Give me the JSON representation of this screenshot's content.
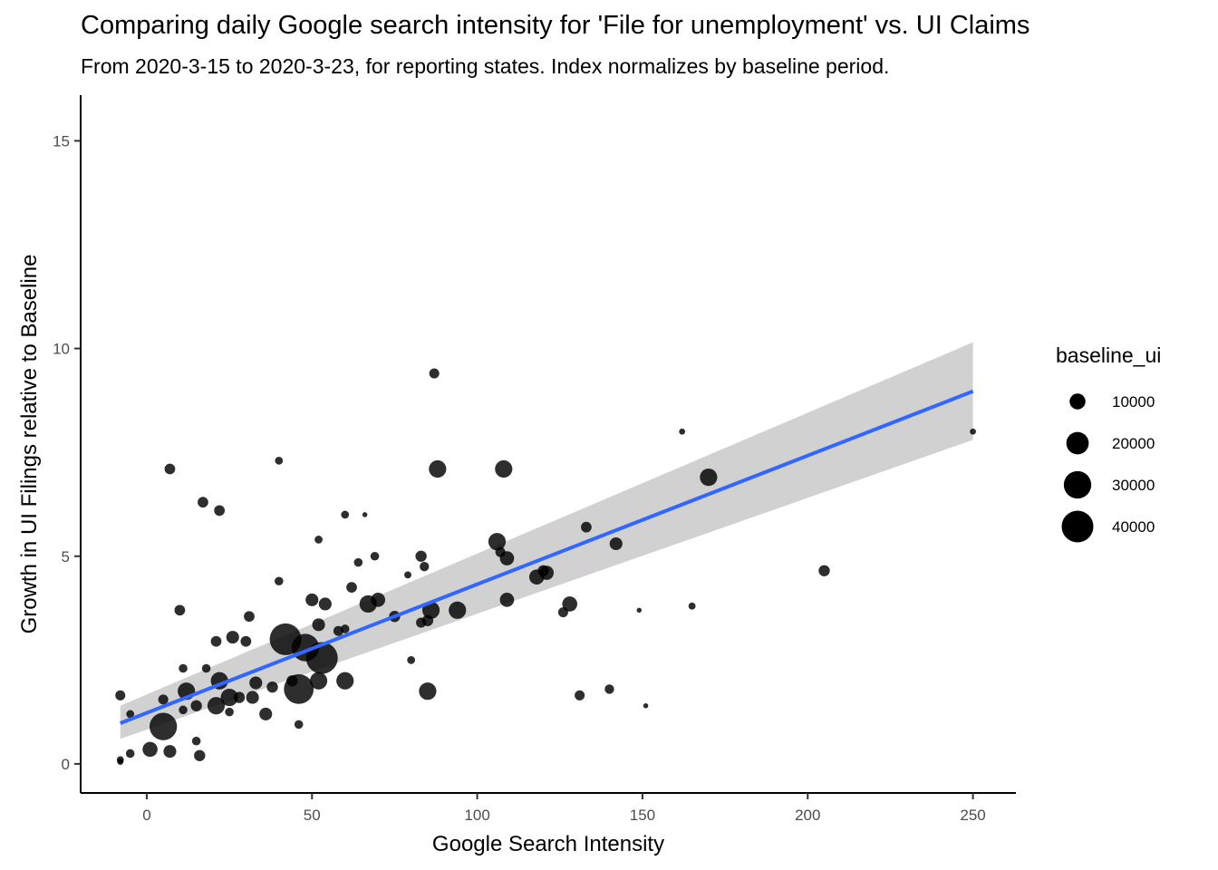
{
  "chart_data": {
    "type": "scatter",
    "title": "Comparing daily Google search intensity for 'File for unemployment' vs. UI Claims",
    "subtitle": "From 2020-3-15 to 2020-3-23, for reporting states. Index normalizes by baseline period.",
    "xlabel": "Google Search Intensity",
    "ylabel": "Growth in UI Filings relative to Baseline",
    "xlim": [
      -20,
      263
    ],
    "ylim": [
      -0.7,
      16.1
    ],
    "xticks": [
      0,
      50,
      100,
      150,
      200,
      250
    ],
    "yticks": [
      0,
      5,
      10,
      15
    ],
    "grid": false,
    "colors": {
      "points": "#000000",
      "fit_line": "#3366FF",
      "ribbon": "#cccccc"
    },
    "fit_line": {
      "x": [
        -8,
        250
      ],
      "y": [
        0.98,
        8.97
      ]
    },
    "confidence_band": {
      "x": [
        -8,
        250
      ],
      "lower": [
        0.6,
        7.8
      ],
      "upper": [
        1.4,
        10.15
      ]
    },
    "legend": {
      "title": "baseline_ui",
      "position": "right",
      "entries": [
        {
          "label": "10000",
          "value": 10000
        },
        {
          "label": "20000",
          "value": 20000
        },
        {
          "label": "30000",
          "value": 30000
        },
        {
          "label": "40000",
          "value": 40000
        }
      ]
    },
    "points": [
      {
        "x": -8,
        "y": 1.65,
        "size": 4000
      },
      {
        "x": -8,
        "y": 0.1,
        "size": 2000
      },
      {
        "x": -5,
        "y": 1.2,
        "size": 2500
      },
      {
        "x": -5,
        "y": 0.25,
        "size": 3000
      },
      {
        "x": -8,
        "y": 0.05,
        "size": 1500
      },
      {
        "x": 7,
        "y": 7.1,
        "size": 4500
      },
      {
        "x": 10,
        "y": 3.7,
        "size": 4500
      },
      {
        "x": 17,
        "y": 6.3,
        "size": 4500
      },
      {
        "x": 22,
        "y": 6.1,
        "size": 4500
      },
      {
        "x": 40,
        "y": 7.3,
        "size": 2500
      },
      {
        "x": 52,
        "y": 5.4,
        "size": 2500
      },
      {
        "x": 60,
        "y": 6.0,
        "size": 2500
      },
      {
        "x": 66,
        "y": 6.0,
        "size": 1000
      },
      {
        "x": 87,
        "y": 9.4,
        "size": 4000
      },
      {
        "x": 88,
        "y": 7.1,
        "size": 12000
      },
      {
        "x": 108,
        "y": 7.1,
        "size": 12000
      },
      {
        "x": 162,
        "y": 8.0,
        "size": 1500
      },
      {
        "x": 170,
        "y": 6.9,
        "size": 12000
      },
      {
        "x": 250,
        "y": 8.0,
        "size": 1500
      },
      {
        "x": 205,
        "y": 4.65,
        "size": 5000
      },
      {
        "x": 133,
        "y": 5.7,
        "size": 4500
      },
      {
        "x": 142,
        "y": 5.3,
        "size": 6500
      },
      {
        "x": 106,
        "y": 5.35,
        "size": 12000
      },
      {
        "x": 107,
        "y": 5.1,
        "size": 4000
      },
      {
        "x": 109,
        "y": 4.95,
        "size": 8000
      },
      {
        "x": 120,
        "y": 4.65,
        "size": 5000
      },
      {
        "x": 118,
        "y": 4.5,
        "size": 9000
      },
      {
        "x": 121,
        "y": 4.6,
        "size": 8000
      },
      {
        "x": 109,
        "y": 3.95,
        "size": 8000
      },
      {
        "x": 128,
        "y": 3.85,
        "size": 9000
      },
      {
        "x": 126,
        "y": 3.65,
        "size": 4000
      },
      {
        "x": 149,
        "y": 3.7,
        "size": 1000
      },
      {
        "x": 165,
        "y": 3.8,
        "size": 2000
      },
      {
        "x": 131,
        "y": 1.65,
        "size": 4000
      },
      {
        "x": 140,
        "y": 1.8,
        "size": 3500
      },
      {
        "x": 151,
        "y": 1.4,
        "size": 1000
      },
      {
        "x": 94,
        "y": 3.7,
        "size": 12000
      },
      {
        "x": 86,
        "y": 3.7,
        "size": 12000
      },
      {
        "x": 85,
        "y": 3.45,
        "size": 5000
      },
      {
        "x": 83,
        "y": 3.4,
        "size": 4000
      },
      {
        "x": 85,
        "y": 1.75,
        "size": 12000
      },
      {
        "x": 80,
        "y": 2.5,
        "size": 2500
      },
      {
        "x": 83,
        "y": 5.0,
        "size": 5000
      },
      {
        "x": 84,
        "y": 4.75,
        "size": 3500
      },
      {
        "x": 79,
        "y": 4.55,
        "size": 2000
      },
      {
        "x": 75,
        "y": 3.55,
        "size": 5000
      },
      {
        "x": 70,
        "y": 3.95,
        "size": 8000
      },
      {
        "x": 67,
        "y": 3.85,
        "size": 12000
      },
      {
        "x": 69,
        "y": 5.0,
        "size": 3000
      },
      {
        "x": 64,
        "y": 4.85,
        "size": 3000
      },
      {
        "x": 62,
        "y": 4.25,
        "size": 4500
      },
      {
        "x": 50,
        "y": 3.95,
        "size": 6500
      },
      {
        "x": 54,
        "y": 3.85,
        "size": 6500
      },
      {
        "x": 52,
        "y": 3.35,
        "size": 6500
      },
      {
        "x": 58,
        "y": 3.2,
        "size": 4000
      },
      {
        "x": 60,
        "y": 3.25,
        "size": 3000
      },
      {
        "x": 40,
        "y": 4.4,
        "size": 3000
      },
      {
        "x": 31,
        "y": 3.55,
        "size": 4500
      },
      {
        "x": 30,
        "y": 2.95,
        "size": 4500
      },
      {
        "x": 26,
        "y": 3.05,
        "size": 6500
      },
      {
        "x": 21,
        "y": 2.95,
        "size": 4500
      },
      {
        "x": 18,
        "y": 2.3,
        "size": 3000
      },
      {
        "x": 11,
        "y": 2.3,
        "size": 3000
      },
      {
        "x": 42,
        "y": 3.0,
        "size": 40000
      },
      {
        "x": 48,
        "y": 2.8,
        "size": 30000
      },
      {
        "x": 53,
        "y": 2.55,
        "size": 40000
      },
      {
        "x": 46,
        "y": 1.8,
        "size": 35000
      },
      {
        "x": 60,
        "y": 2.0,
        "size": 12000
      },
      {
        "x": 52,
        "y": 2.0,
        "size": 12000
      },
      {
        "x": 44,
        "y": 2.0,
        "size": 5000
      },
      {
        "x": 38,
        "y": 1.85,
        "size": 5000
      },
      {
        "x": 33,
        "y": 1.95,
        "size": 6500
      },
      {
        "x": 32,
        "y": 1.6,
        "size": 6500
      },
      {
        "x": 28,
        "y": 1.6,
        "size": 5000
      },
      {
        "x": 36,
        "y": 1.2,
        "size": 6500
      },
      {
        "x": 46,
        "y": 0.95,
        "size": 3000
      },
      {
        "x": 22,
        "y": 2.0,
        "size": 12000
      },
      {
        "x": 25,
        "y": 1.6,
        "size": 12000
      },
      {
        "x": 21,
        "y": 1.4,
        "size": 12000
      },
      {
        "x": 12,
        "y": 1.75,
        "size": 12000
      },
      {
        "x": 15,
        "y": 1.4,
        "size": 5000
      },
      {
        "x": 11,
        "y": 1.3,
        "size": 3000
      },
      {
        "x": 5,
        "y": 1.55,
        "size": 4000
      },
      {
        "x": 25,
        "y": 1.25,
        "size": 3000
      },
      {
        "x": 5,
        "y": 0.9,
        "size": 30000
      },
      {
        "x": 1,
        "y": 0.35,
        "size": 9000
      },
      {
        "x": 7,
        "y": 0.3,
        "size": 6500
      },
      {
        "x": 15,
        "y": 0.55,
        "size": 3000
      },
      {
        "x": 16,
        "y": 0.2,
        "size": 5000
      }
    ]
  }
}
